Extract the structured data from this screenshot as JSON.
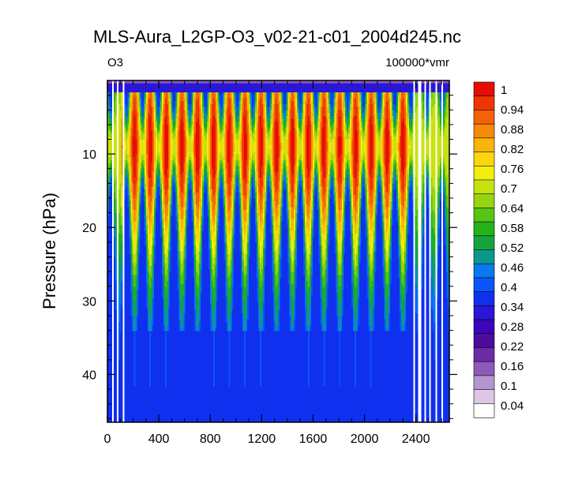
{
  "chart_data": {
    "type": "heatmap",
    "title": "MLS-Aura_L2GP-O3_v02-21-c01_2004d245.nc",
    "left_label": "O3",
    "right_label": "100000*vmr",
    "xlabel": "",
    "ylabel": "Pressure (hPa)",
    "x_ticks": [
      0,
      400,
      800,
      1200,
      1600,
      2000,
      2400
    ],
    "y_ticks": [
      10,
      20,
      30,
      40
    ],
    "xlim": [
      0,
      2660
    ],
    "ylim": [
      0,
      46.5
    ],
    "y_inverted": true,
    "colorbar_levels": [
      "1",
      "0.94",
      "0.88",
      "0.82",
      "0.76",
      "0.7",
      "0.64",
      "0.58",
      "0.52",
      "0.46",
      "0.4",
      "0.34",
      "0.28",
      "0.22",
      "0.16",
      "0.1",
      "0.04"
    ],
    "colorbar_colors": [
      "#ffffff",
      "#dcc8e6",
      "#b496cf",
      "#8c5ab8",
      "#6a2ba5",
      "#4f0aa0",
      "#3a06b8",
      "#2a16d6",
      "#1030ef",
      "#0a55f7",
      "#077aee",
      "#0a988c",
      "#16a33c",
      "#23b21a",
      "#58c414",
      "#96d410",
      "#c8e210",
      "#f2ee10",
      "#fbd60d",
      "#f9b40b",
      "#f78a09",
      "#f36206",
      "#ee3504",
      "#e50e02"
    ],
    "pattern": {
      "orbit_count": 18,
      "x_start": 150,
      "x_end": 2360,
      "peak_pressure": 9,
      "gaps_x": [
        40,
        80,
        130,
        2390,
        2430,
        2470,
        2510,
        2560,
        2610
      ],
      "z_min": 0.0,
      "z_max": 1.0
    }
  }
}
